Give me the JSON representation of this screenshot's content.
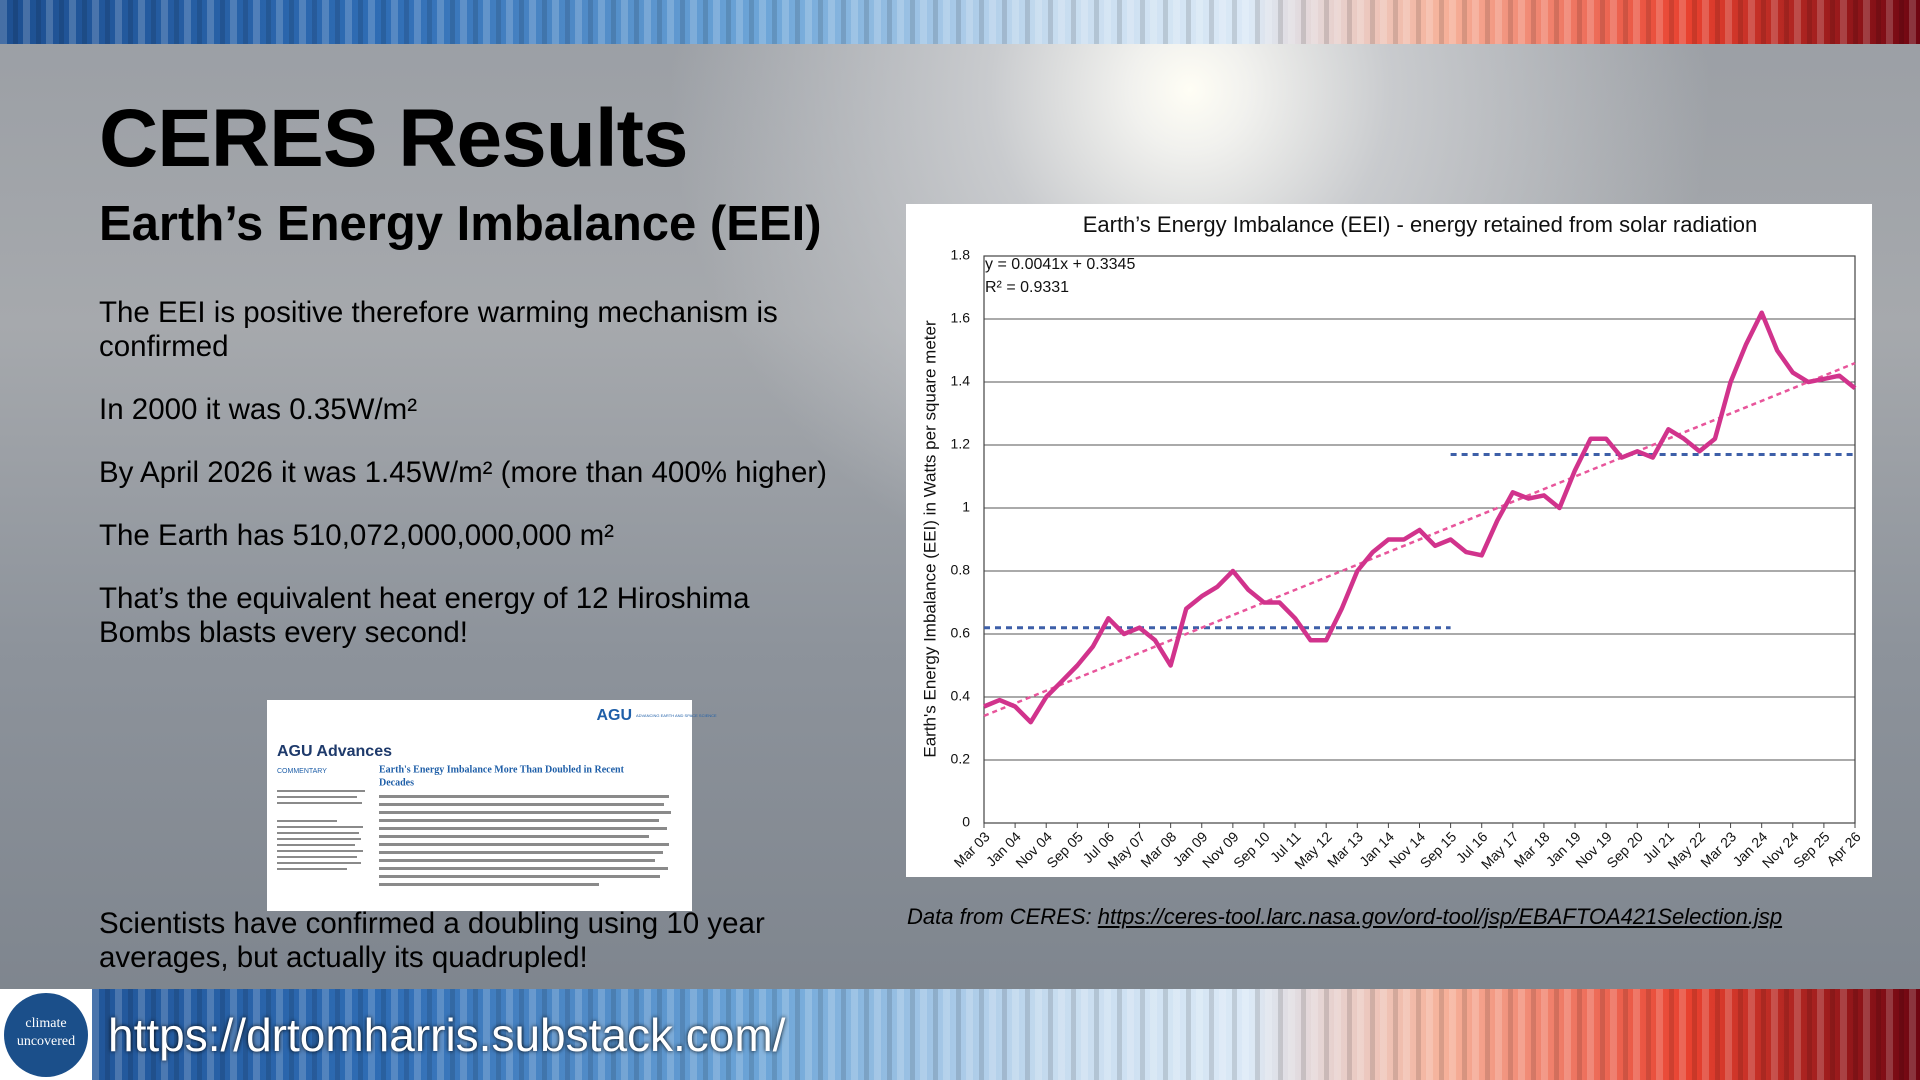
{
  "slide": {
    "title": "CERES Results",
    "subtitle": "Earth’s Energy Imbalance (EEI)",
    "paragraphs": [
      "The EEI is positive therefore warming mechanism is confirmed",
      "In 2000 it was 0.35W/m²",
      "By April 2026 it was 1.45W/m² (more than 400% higher)",
      "The Earth has 510,072,000,000,000 m²",
      "That’s the equivalent heat energy of 12 Hiroshima Bombs blasts every second!"
    ],
    "closing": "Scientists have confirmed a doubling using 10 year averages, but actually its quadrupled!",
    "source_prefix": "Data from CERES: ",
    "source_url": "https://ceres-tool.larc.nasa.gov/ord-tool/jsp/EBAFTOA421Selection.jsp",
    "logo_text": [
      "climate",
      "uncovered"
    ],
    "footer_url": "https://drtomharris.substack.com/"
  },
  "paper": {
    "publisher": "AGU",
    "publisher_tagline": "ADVANCING EARTH AND SPACE SCIENCE",
    "journal": "AGU Advances",
    "section": "COMMENTARY",
    "title": [
      "Earth's Energy Imbalance More Than Doubled in Recent",
      "Decades"
    ]
  },
  "chart_data": {
    "type": "line",
    "title": "Earth’s Energy Imbalance (EEI) - energy retained from solar radiation",
    "y_label": "Earth's Energy Imbalance (EEI) in Watts per square meter",
    "annotations": [
      "y = 0.0041x + 0.3345",
      "R² = 0.9331"
    ],
    "categories": [
      "Mar 03",
      null,
      "Jan 04",
      null,
      "Nov 04",
      null,
      "Sep 05",
      null,
      "Jul 06",
      null,
      "May 07",
      null,
      "Mar 08",
      null,
      "Jan 09",
      null,
      "Nov 09",
      null,
      "Sep 10",
      null,
      "Jul 11",
      null,
      "May 12",
      null,
      "Mar 13",
      null,
      "Jan 14",
      null,
      "Nov 14",
      null,
      "Sep 15",
      null,
      "Jul 16",
      null,
      "May 17",
      null,
      "Mar 18",
      null,
      "Jan 19",
      null,
      "Nov 19",
      null,
      "Sep 20",
      null,
      "Jul 21",
      null,
      "May 22",
      null,
      "Mar 23",
      null,
      "Jan 24",
      null,
      "Nov 24",
      null,
      "Sep 25",
      null,
      "Apr 26"
    ],
    "values": [
      0.37,
      0.39,
      0.37,
      0.32,
      0.4,
      0.45,
      0.5,
      0.56,
      0.65,
      0.6,
      0.62,
      0.58,
      0.5,
      0.68,
      0.72,
      0.75,
      0.8,
      0.74,
      0.7,
      0.7,
      0.65,
      0.58,
      0.58,
      0.68,
      0.8,
      0.86,
      0.9,
      0.9,
      0.93,
      0.88,
      0.9,
      0.86,
      0.85,
      0.96,
      1.05,
      1.03,
      1.04,
      1.0,
      1.12,
      1.22,
      1.22,
      1.16,
      1.18,
      1.16,
      1.25,
      1.22,
      1.18,
      1.22,
      1.4,
      1.52,
      1.62,
      1.5,
      1.43,
      1.4,
      1.41,
      1.42,
      1.38
    ],
    "color": "#d1338c",
    "trend_line": {
      "values": [
        0.34,
        1.46
      ],
      "color": "#e8559b"
    },
    "averages": [
      {
        "from": "Mar 03",
        "to": "Sep 15",
        "value": 0.62
      },
      {
        "from": "Sep 15",
        "to": "Apr 26",
        "value": 1.17
      }
    ],
    "average_color": "#3d5fa8",
    "ylim": [
      0,
      1.8
    ],
    "yticks": [
      0,
      0.2,
      0.4,
      0.6,
      0.8,
      1,
      1.2,
      1.4,
      1.6,
      1.8
    ],
    "grid": true
  }
}
